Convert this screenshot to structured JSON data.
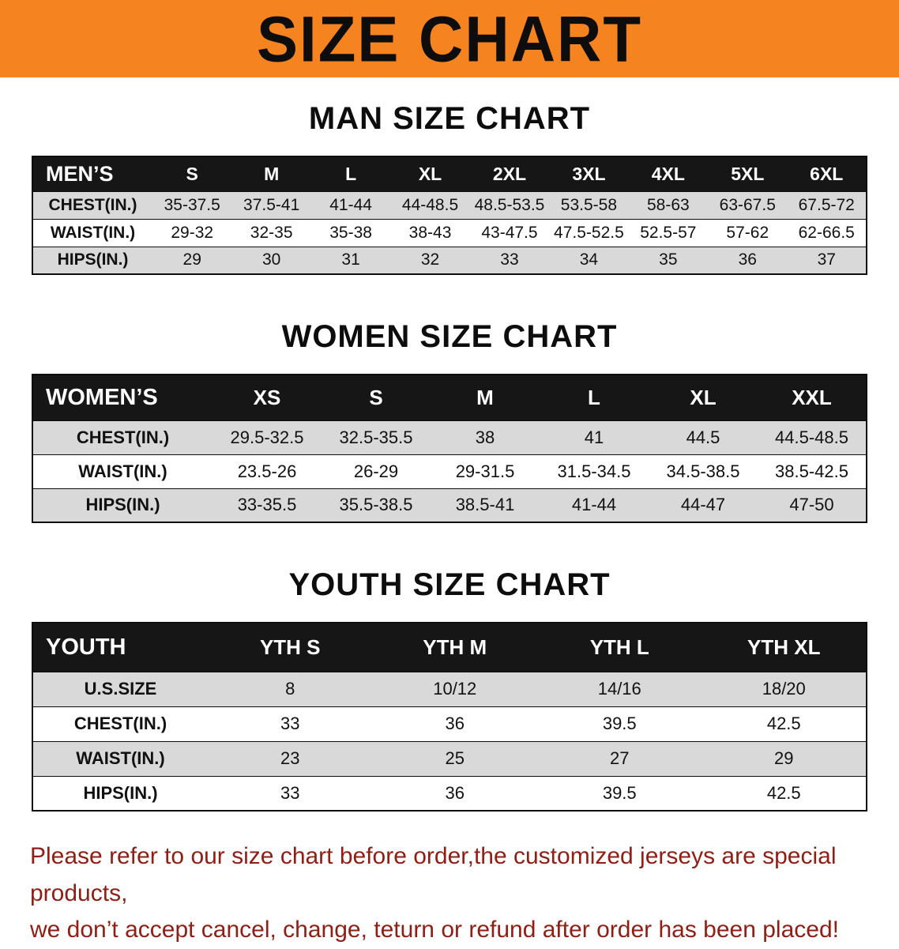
{
  "banner": {
    "title": "SIZE CHART"
  },
  "colors": {
    "banner_bg": "#f5831f",
    "header_row_bg": "#161616",
    "row_alt_bg": "#d9d9d9",
    "footer_text": "#8f1e14"
  },
  "sections": [
    {
      "heading": "MAN SIZE CHART",
      "table": {
        "corner": "MEN’S",
        "columns": [
          "S",
          "M",
          "L",
          "XL",
          "2XL",
          "3XL",
          "4XL",
          "5XL",
          "6XL"
        ],
        "rows": [
          {
            "label": "CHEST(IN.)",
            "values": [
              "35-37.5",
              "37.5-41",
              "41-44",
              "44-48.5",
              "48.5-53.5",
              "53.5-58",
              "58-63",
              "63-67.5",
              "67.5-72"
            ]
          },
          {
            "label": "WAIST(IN.)",
            "values": [
              "29-32",
              "32-35",
              "35-38",
              "38-43",
              "43-47.5",
              "47.5-52.5",
              "52.5-57",
              "57-62",
              "62-66.5"
            ]
          },
          {
            "label": "HIPS(IN.)",
            "values": [
              "29",
              "30",
              "31",
              "32",
              "33",
              "34",
              "35",
              "36",
              "37"
            ]
          }
        ]
      }
    },
    {
      "heading": "WOMEN SIZE CHART",
      "table": {
        "corner": "WOMEN’S",
        "columns": [
          "XS",
          "S",
          "M",
          "L",
          "XL",
          "XXL"
        ],
        "rows": [
          {
            "label": "CHEST(IN.)",
            "values": [
              "29.5-32.5",
              "32.5-35.5",
              "38",
              "41",
              "44.5",
              "44.5-48.5"
            ]
          },
          {
            "label": "WAIST(IN.)",
            "values": [
              "23.5-26",
              "26-29",
              "29-31.5",
              "31.5-34.5",
              "34.5-38.5",
              "38.5-42.5"
            ]
          },
          {
            "label": "HIPS(IN.)",
            "values": [
              "33-35.5",
              "35.5-38.5",
              "38.5-41",
              "41-44",
              "44-47",
              "47-50"
            ]
          }
        ]
      }
    },
    {
      "heading": "YOUTH SIZE CHART",
      "table": {
        "corner": "YOUTH",
        "columns": [
          "YTH S",
          "YTH M",
          "YTH L",
          "YTH XL"
        ],
        "rows": [
          {
            "label": "U.S.SIZE",
            "values": [
              "8",
              "10/12",
              "14/16",
              "18/20"
            ]
          },
          {
            "label": "CHEST(IN.)",
            "values": [
              "33",
              "36",
              "39.5",
              "42.5"
            ]
          },
          {
            "label": "WAIST(IN.)",
            "values": [
              "23",
              "25",
              "27",
              "29"
            ]
          },
          {
            "label": "HIPS(IN.)",
            "values": [
              "33",
              "36",
              "39.5",
              "42.5"
            ]
          }
        ]
      }
    }
  ],
  "footer": {
    "line1": "Please refer to our size chart before order,the customized jerseys are special products,",
    "line2": "we don’t accept cancel, change, teturn or refund after order has been placed!"
  }
}
